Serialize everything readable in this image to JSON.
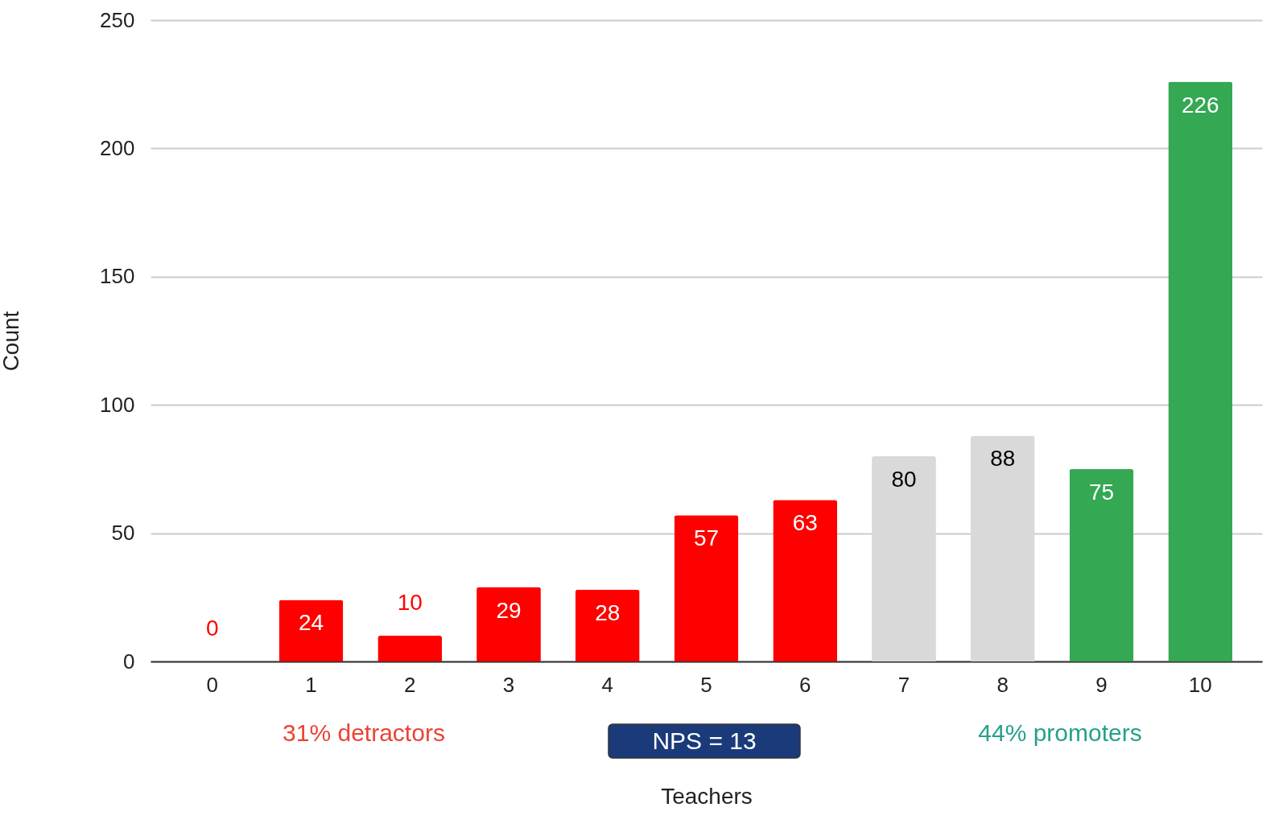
{
  "chart_data": {
    "type": "bar",
    "xlabel": "Teachers",
    "ylabel": "Count",
    "categories": [
      "0",
      "1",
      "2",
      "3",
      "4",
      "5",
      "6",
      "7",
      "8",
      "9",
      "10"
    ],
    "values": [
      0,
      24,
      10,
      29,
      28,
      57,
      63,
      80,
      88,
      75,
      226
    ],
    "colors": [
      "#ff0000",
      "#ff0000",
      "#ff0000",
      "#ff0000",
      "#ff0000",
      "#ff0000",
      "#ff0000",
      "#d9d9d9",
      "#d9d9d9",
      "#34a853",
      "#34a853"
    ],
    "ylim": [
      0,
      250
    ],
    "yticks": [
      0,
      50,
      100,
      150,
      200,
      250
    ],
    "grid": "y",
    "data_labels": true,
    "annotations": [
      "31% detractors",
      "NPS = 13",
      "44% promoters"
    ]
  }
}
